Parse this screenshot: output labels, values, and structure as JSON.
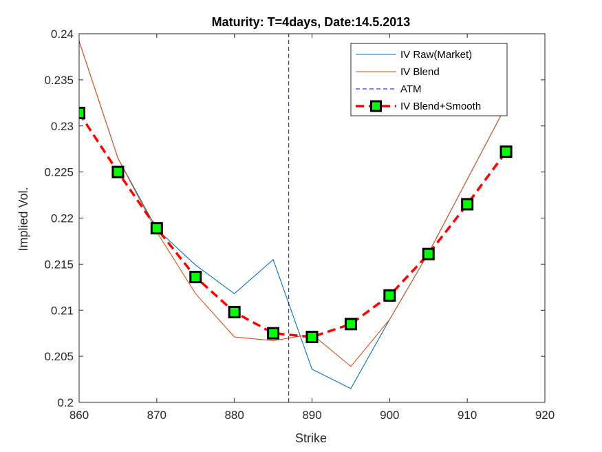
{
  "chart_data": {
    "type": "line",
    "title": "Maturity: T=4days, Date:14.5.2013",
    "xlabel": "Strike",
    "ylabel": "Implied Vol.",
    "xlim": [
      860,
      920
    ],
    "ylim": [
      0.2,
      0.24
    ],
    "xticks": [
      "860",
      "870",
      "880",
      "890",
      "900",
      "910",
      "920"
    ],
    "yticks": [
      "0.2",
      "0.205",
      "0.21",
      "0.215",
      "0.22",
      "0.225",
      "0.23",
      "0.235",
      "0.24"
    ],
    "grid": false,
    "legend_position": "top-right",
    "atm_strike": 887,
    "series": [
      {
        "name": "IV Raw(Market)",
        "color": "#0072BD",
        "style": "solid",
        "x": [
          860,
          865,
          870,
          875,
          880,
          885,
          890,
          895,
          900,
          905,
          910,
          915
        ],
        "y": [
          0.2392,
          0.2265,
          0.2188,
          0.2149,
          0.2118,
          0.2155,
          0.2036,
          0.2015,
          0.209,
          0.2162,
          0.2242,
          0.2322
        ]
      },
      {
        "name": "IV Blend",
        "color": "#D95319",
        "style": "solid",
        "x": [
          860,
          865,
          870,
          875,
          880,
          885,
          890,
          895,
          900,
          905,
          910,
          915
        ],
        "y": [
          0.2392,
          0.2265,
          0.2185,
          0.2118,
          0.2071,
          0.2067,
          0.2074,
          0.2039,
          0.209,
          0.2162,
          0.2242,
          0.2322
        ]
      },
      {
        "name": "ATM",
        "color": "#0000FF",
        "style": "dashed-vertical",
        "x": [
          887,
          887
        ],
        "y": [
          0.2,
          0.24
        ]
      },
      {
        "name": "IV Blend+Smooth",
        "color": "#FF0000",
        "marker_color": "#00FF00",
        "style": "dashed-markers",
        "x": [
          860,
          865,
          870,
          875,
          880,
          885,
          890,
          895,
          900,
          905,
          910,
          915
        ],
        "y": [
          0.2314,
          0.225,
          0.2189,
          0.2136,
          0.2098,
          0.2075,
          0.2071,
          0.2085,
          0.2116,
          0.2161,
          0.2215,
          0.2272
        ]
      }
    ]
  }
}
